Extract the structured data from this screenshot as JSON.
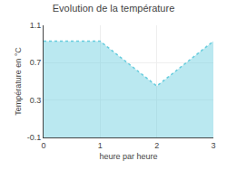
{
  "chart_data": {
    "type": "area",
    "title": "Evolution de la température",
    "xlabel": "heure par heure",
    "ylabel": "Température en °C",
    "x": [
      0,
      1,
      2,
      3
    ],
    "values": [
      0.93,
      0.93,
      0.45,
      0.93
    ],
    "xlim": [
      0,
      3
    ],
    "ylim": [
      -0.1,
      1.1
    ],
    "xticks": [
      0,
      1,
      2,
      3
    ],
    "yticks": [
      -0.1,
      0.3,
      0.7,
      1.1
    ],
    "color": "#66ccdd",
    "line_style": "dotted",
    "grid": true
  }
}
